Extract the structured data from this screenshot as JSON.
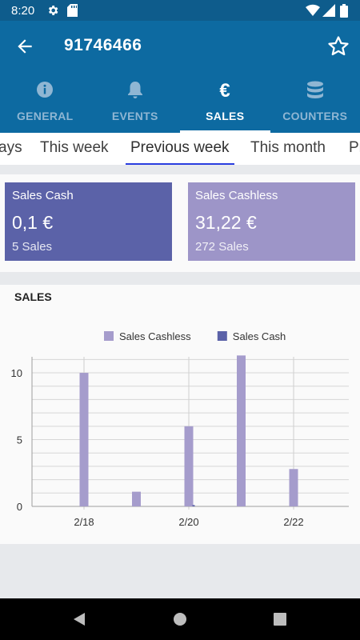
{
  "status": {
    "time": "8:20"
  },
  "appbar": {
    "title": "91746466"
  },
  "tabs": [
    {
      "label": "GENERAL",
      "icon": "info-icon",
      "active": false
    },
    {
      "label": "EVENTS",
      "icon": "bell-icon",
      "active": false
    },
    {
      "label": "SALES",
      "icon": "euro-icon",
      "active": true
    },
    {
      "label": "COUNTERS",
      "icon": "database-icon",
      "active": false
    }
  ],
  "periods": [
    {
      "label": "ays"
    },
    {
      "label": "This week"
    },
    {
      "label": "Previous week",
      "active": true
    },
    {
      "label": "This month"
    },
    {
      "label": "Pr"
    }
  ],
  "cards": {
    "cash": {
      "name": "Sales Cash",
      "amount": "0,1 €",
      "count": "5 Sales",
      "color": "#5b62a8"
    },
    "cashless": {
      "name": "Sales Cashless",
      "amount": "31,22 €",
      "count": "272 Sales",
      "color": "#9d95c8"
    }
  },
  "chart": {
    "heading": "SALES"
  },
  "chart_data": {
    "type": "bar",
    "title": "",
    "xlabel": "",
    "ylabel": "",
    "legend_position": "top-center",
    "categories": [
      "2/18",
      "2/19",
      "2/20",
      "2/21",
      "2/22"
    ],
    "x_tick_labels": [
      "2/18",
      "2/20",
      "2/22"
    ],
    "y_ticks": [
      0,
      5,
      10
    ],
    "ylim": [
      0,
      11.2
    ],
    "series": [
      {
        "name": "Sales Cashless",
        "color": "#a59ccc",
        "values": [
          10.0,
          1.1,
          6.0,
          11.3,
          2.8
        ]
      },
      {
        "name": "Sales Cash",
        "color": "#5b62a8",
        "values": [
          0,
          0,
          0.1,
          0,
          0
        ]
      }
    ]
  }
}
